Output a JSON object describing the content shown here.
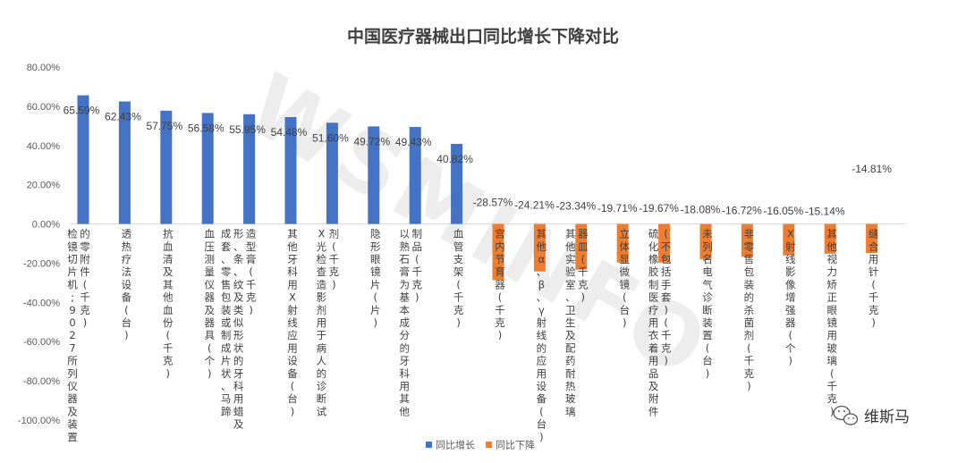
{
  "chart_data": {
    "type": "bar",
    "title": "中国医疗器械出口同比增长下降对比",
    "ylim": [
      -100,
      80
    ],
    "yticks": [
      "80.00%",
      "60.00%",
      "40.00%",
      "20.00%",
      "0.00%",
      "-20.00%",
      "-40.00%",
      "-60.00%",
      "-80.00%",
      "-100.00%"
    ],
    "ytick_values": [
      80,
      60,
      40,
      20,
      0,
      -20,
      -40,
      -60,
      -80,
      -100
    ],
    "categories": [
      "检镜切片机;9027所列仪器及装置的零附件(千克)",
      "透热疗法设备(台)",
      "抗血清及其他血份(千克)",
      "血压测量仪器及器具(个)",
      "成套、零售包装或制成片状、马蹄形、条、纹及类似形状的牙科用蜡及造型膏(千克)",
      "其他牙科用X射线应用设备(台)",
      "X光检查造影剂用于病人的诊断试剂(千克)",
      "隐形眼镜片(片)",
      "以熟石膏为基本成分的牙科用其他制品(千克)",
      "血管支架(千克)",
      "宫内节育器(千克)",
      "其他α、β、γ射线的应用设备(台)",
      "其他实验室、卫生及配药耐热玻璃器皿(千克)",
      "立体显微镜(台)",
      "硫化橡胶制医疗用衣着用品及附件(不包括手套)(千克)",
      "未列名电气诊断装置(台)",
      "非零售包装的杀菌剂(千克)",
      "X射线影像增强器(个)",
      "其他视力矫正眼镜用玻璃(千克)",
      "缝合用针(千克)"
    ],
    "category_columns": [
      [
        "检镜切片机;9027所列仪器及装置",
        "的零附件(千克)"
      ],
      [
        "透热疗法设备(台)"
      ],
      [
        "抗血清及其他血份(千克)"
      ],
      [
        "血压测量仪器及器具(个)"
      ],
      [
        "成套、零售包装或制成片状、马蹄",
        "形、条、纹及类似形状的牙科用蜡及",
        "造型膏(千克)"
      ],
      [
        "其他牙科用X射线应用设备(台)"
      ],
      [
        "X光检查造影剂用于病人的诊断试",
        "剂(千克)"
      ],
      [
        "隐形眼镜片(片)"
      ],
      [
        "以熟石膏为基本成分的牙科用其他",
        "制品(千克)"
      ],
      [
        "血管支架(千克)"
      ],
      [
        "宫内节育器(千克)"
      ],
      [
        "其他α、β、γ射线的应用设备(台)"
      ],
      [
        "其他实验室、卫生及配药耐热玻璃",
        "器皿(千克)"
      ],
      [
        "立体显微镜(台)"
      ],
      [
        "硫化橡胶制医疗用衣着用品及附件",
        "(不包括手套)(千克)"
      ],
      [
        "未列名电气诊断装置(台)"
      ],
      [
        "非零售包装的杀菌剂(千克)"
      ],
      [
        "X射线影像增强器(个)"
      ],
      [
        "其他视力矫正眼镜用玻璃(千克)"
      ],
      [
        "缝合用针(千克)"
      ]
    ],
    "series": [
      {
        "name": "同比增长",
        "color": "#4472C4",
        "values": [
          65.59,
          62.43,
          57.75,
          56.58,
          55.95,
          54.48,
          51.6,
          49.72,
          49.43,
          40.82,
          null,
          null,
          null,
          null,
          null,
          null,
          null,
          null,
          null,
          null
        ]
      },
      {
        "name": "同比下降",
        "color": "#ED7D31",
        "values": [
          null,
          null,
          null,
          null,
          null,
          null,
          null,
          null,
          null,
          null,
          -28.57,
          -24.21,
          -23.34,
          -19.71,
          -19.67,
          -18.08,
          -16.72,
          -16.05,
          -15.14,
          -14.81
        ]
      }
    ],
    "data_labels": [
      "65.59%",
      "62.43%",
      "57.75%",
      "56.58%",
      "55.95%",
      "54.48%",
      "51.60%",
      "49.72%",
      "49.43%",
      "40.82%",
      "-28.57%",
      "-24.21%",
      "-23.34%",
      "-19.71%",
      "-19.67%",
      "-18.08%",
      "-16.72%",
      "-16.05%",
      "-15.14%",
      "-14.81%"
    ],
    "grid": false,
    "legend_position": "bottom"
  },
  "legend": {
    "increase_label": "同比增长",
    "decrease_label": "同比下降"
  },
  "watermark": {
    "diagonal_text": "WSMINFO",
    "brand_text": "维斯马",
    "icon": "wechat-icon"
  }
}
